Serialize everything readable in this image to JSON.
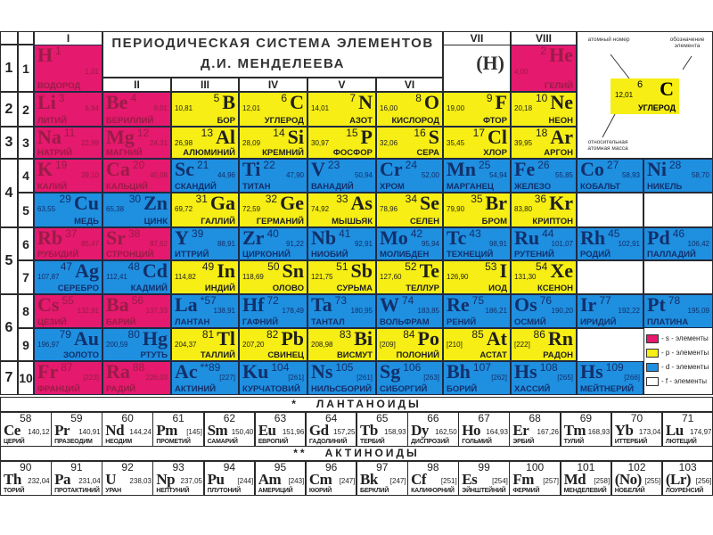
{
  "title": {
    "line1": "ПЕРИОДИЧЕСКАЯ СИСТЕМА ЭЛЕМЕНТОВ",
    "line2": "Д.И. МЕНДЕЛЕЕВА"
  },
  "groups": [
    "I",
    "II",
    "III",
    "IV",
    "V",
    "VI",
    "VII",
    "VIII"
  ],
  "periods": [
    "1",
    "2",
    "3",
    "4",
    "5",
    "6",
    "7"
  ],
  "row_numbers": [
    "1",
    "2",
    "3",
    "4",
    "5",
    "6",
    "7",
    "8",
    "9",
    "10"
  ],
  "hydrogen_in_vii": "(H)",
  "colors": {
    "s": "#e5196d",
    "p": "#f6ee14",
    "d": "#1f8fe0",
    "f": "#ffffff"
  },
  "rows": [
    [
      {
        "s": "H",
        "n": "1",
        "m": "1,01",
        "name": "ВОДОРОД",
        "t": "s",
        "lay": "L"
      },
      null,
      null,
      null,
      null,
      null,
      null,
      {
        "s": "He",
        "n": "2",
        "m": "4,00",
        "name": "ГЕЛИЙ",
        "t": "s",
        "lay": "R"
      },
      null,
      null
    ],
    [
      {
        "s": "Li",
        "n": "3",
        "m": "6,94",
        "name": "ЛИТИЙ",
        "t": "s",
        "lay": "L"
      },
      {
        "s": "Be",
        "n": "4",
        "m": "9,01",
        "name": "БЕРИЛЛИЙ",
        "t": "s",
        "lay": "L"
      },
      {
        "s": "B",
        "n": "5",
        "m": "10,81",
        "name": "БОР",
        "t": "p",
        "lay": "R"
      },
      {
        "s": "C",
        "n": "6",
        "m": "12,01",
        "name": "УГЛЕРОД",
        "t": "p",
        "lay": "R"
      },
      {
        "s": "N",
        "n": "7",
        "m": "14,01",
        "name": "АЗОТ",
        "t": "p",
        "lay": "R"
      },
      {
        "s": "O",
        "n": "8",
        "m": "16,00",
        "name": "КИСЛОРОД",
        "t": "p",
        "lay": "R"
      },
      {
        "s": "F",
        "n": "9",
        "m": "19,00",
        "name": "ФТОР",
        "t": "p",
        "lay": "R"
      },
      {
        "s": "Ne",
        "n": "10",
        "m": "20,18",
        "name": "НЕОН",
        "t": "p",
        "lay": "R"
      },
      null,
      null
    ],
    [
      {
        "s": "Na",
        "n": "11",
        "m": "22,99",
        "name": "НАТРИЙ",
        "t": "s",
        "lay": "L"
      },
      {
        "s": "Mg",
        "n": "12",
        "m": "24,31",
        "name": "МАГНИЙ",
        "t": "s",
        "lay": "L"
      },
      {
        "s": "Al",
        "n": "13",
        "m": "26,98",
        "name": "АЛЮМИНИЙ",
        "t": "p",
        "lay": "R"
      },
      {
        "s": "Si",
        "n": "14",
        "m": "28,09",
        "name": "КРЕМНИЙ",
        "t": "p",
        "lay": "R"
      },
      {
        "s": "P",
        "n": "15",
        "m": "30,97",
        "name": "ФОСФОР",
        "t": "p",
        "lay": "R"
      },
      {
        "s": "S",
        "n": "16",
        "m": "32,06",
        "name": "СЕРА",
        "t": "p",
        "lay": "R"
      },
      {
        "s": "Cl",
        "n": "17",
        "m": "35,45",
        "name": "ХЛОР",
        "t": "p",
        "lay": "R"
      },
      {
        "s": "Ar",
        "n": "18",
        "m": "39,95",
        "name": "АРГОН",
        "t": "p",
        "lay": "R"
      },
      null,
      null
    ],
    [
      {
        "s": "K",
        "n": "19",
        "m": "39,10",
        "name": "КАЛИЙ",
        "t": "s",
        "lay": "L"
      },
      {
        "s": "Ca",
        "n": "20",
        "m": "40,08",
        "name": "КАЛЬЦИЙ",
        "t": "s",
        "lay": "L"
      },
      {
        "s": "Sc",
        "n": "21",
        "m": "44,96",
        "name": "СКАНДИЙ",
        "t": "d",
        "lay": "L"
      },
      {
        "s": "Ti",
        "n": "22",
        "m": "47,90",
        "name": "ТИТАН",
        "t": "d",
        "lay": "L"
      },
      {
        "s": "V",
        "n": "23",
        "m": "50,94",
        "name": "ВАНАДИЙ",
        "t": "d",
        "lay": "L"
      },
      {
        "s": "Cr",
        "n": "24",
        "m": "52,00",
        "name": "ХРОМ",
        "t": "d",
        "lay": "L"
      },
      {
        "s": "Mn",
        "n": "25",
        "m": "54,94",
        "name": "МАРГАНЕЦ",
        "t": "d",
        "lay": "L"
      },
      {
        "s": "Fe",
        "n": "26",
        "m": "55,85",
        "name": "ЖЕЛЕЗО",
        "t": "d",
        "lay": "L"
      },
      {
        "s": "Co",
        "n": "27",
        "m": "58,93",
        "name": "КОБАЛЬТ",
        "t": "d",
        "lay": "L"
      },
      {
        "s": "Ni",
        "n": "28",
        "m": "58,70",
        "name": "НИКЕЛЬ",
        "t": "d",
        "lay": "L"
      }
    ],
    [
      {
        "s": "Cu",
        "n": "29",
        "m": "63,55",
        "name": "МЕДЬ",
        "t": "d",
        "lay": "R"
      },
      {
        "s": "Zn",
        "n": "30",
        "m": "65,38",
        "name": "ЦИНК",
        "t": "d",
        "lay": "R"
      },
      {
        "s": "Ga",
        "n": "31",
        "m": "69,72",
        "name": "ГАЛЛИЙ",
        "t": "p",
        "lay": "R"
      },
      {
        "s": "Ge",
        "n": "32",
        "m": "72,59",
        "name": "ГЕРМАНИЙ",
        "t": "p",
        "lay": "R"
      },
      {
        "s": "As",
        "n": "33",
        "m": "74,92",
        "name": "МЫШЬЯК",
        "t": "p",
        "lay": "R"
      },
      {
        "s": "Se",
        "n": "34",
        "m": "78,96",
        "name": "СЕЛЕН",
        "t": "p",
        "lay": "R"
      },
      {
        "s": "Br",
        "n": "35",
        "m": "79,90",
        "name": "БРОМ",
        "t": "p",
        "lay": "R"
      },
      {
        "s": "Kr",
        "n": "36",
        "m": "83,80",
        "name": "КРИПТОН",
        "t": "p",
        "lay": "R"
      },
      null,
      null
    ],
    [
      {
        "s": "Rb",
        "n": "37",
        "m": "85,47",
        "name": "РУБИДИЙ",
        "t": "s",
        "lay": "L"
      },
      {
        "s": "Sr",
        "n": "38",
        "m": "87,62",
        "name": "СТРОНЦИЙ",
        "t": "s",
        "lay": "L"
      },
      {
        "s": "Y",
        "n": "39",
        "m": "88,91",
        "name": "ИТТРИЙ",
        "t": "d",
        "lay": "L"
      },
      {
        "s": "Zr",
        "n": "40",
        "m": "91,22",
        "name": "ЦИРКОНИЙ",
        "t": "d",
        "lay": "L"
      },
      {
        "s": "Nb",
        "n": "41",
        "m": "92,91",
        "name": "НИОБИЙ",
        "t": "d",
        "lay": "L"
      },
      {
        "s": "Mo",
        "n": "42",
        "m": "95,94",
        "name": "МОЛИБДЕН",
        "t": "d",
        "lay": "L"
      },
      {
        "s": "Tc",
        "n": "43",
        "m": "98,91",
        "name": "ТЕХНЕЦИЙ",
        "t": "d",
        "lay": "L"
      },
      {
        "s": "Ru",
        "n": "44",
        "m": "101,07",
        "name": "РУТЕНИЙ",
        "t": "d",
        "lay": "L"
      },
      {
        "s": "Rh",
        "n": "45",
        "m": "102,91",
        "name": "РОДИЙ",
        "t": "d",
        "lay": "L"
      },
      {
        "s": "Pd",
        "n": "46",
        "m": "106,42",
        "name": "ПАЛЛАДИЙ",
        "t": "d",
        "lay": "L"
      }
    ],
    [
      {
        "s": "Ag",
        "n": "47",
        "m": "107,87",
        "name": "СЕРЕБРО",
        "t": "d",
        "lay": "R"
      },
      {
        "s": "Cd",
        "n": "48",
        "m": "112,41",
        "name": "КАДМИЙ",
        "t": "d",
        "lay": "R"
      },
      {
        "s": "In",
        "n": "49",
        "m": "114,82",
        "name": "ИНДИЙ",
        "t": "p",
        "lay": "R"
      },
      {
        "s": "Sn",
        "n": "50",
        "m": "118,69",
        "name": "ОЛОВО",
        "t": "p",
        "lay": "R"
      },
      {
        "s": "Sb",
        "n": "51",
        "m": "121,75",
        "name": "СУРЬМА",
        "t": "p",
        "lay": "R"
      },
      {
        "s": "Te",
        "n": "52",
        "m": "127,60",
        "name": "ТЕЛЛУР",
        "t": "p",
        "lay": "R"
      },
      {
        "s": "I",
        "n": "53",
        "m": "126,90",
        "name": "ИОД",
        "t": "p",
        "lay": "R"
      },
      {
        "s": "Xe",
        "n": "54",
        "m": "131,30",
        "name": "КСЕНОН",
        "t": "p",
        "lay": "R"
      },
      null,
      null
    ],
    [
      {
        "s": "Cs",
        "n": "55",
        "m": "132,91",
        "name": "ЦЕЗИЙ",
        "t": "s",
        "lay": "L"
      },
      {
        "s": "Ba",
        "n": "56",
        "m": "137,33",
        "name": "БАРИЙ",
        "t": "s",
        "lay": "L"
      },
      {
        "s": "La",
        "n": "*57",
        "m": "138,91",
        "name": "ЛАНТАН",
        "t": "d",
        "lay": "L"
      },
      {
        "s": "Hf",
        "n": "72",
        "m": "178,49",
        "name": "ГАФНИЙ",
        "t": "d",
        "lay": "L"
      },
      {
        "s": "Ta",
        "n": "73",
        "m": "180,95",
        "name": "ТАНТАЛ",
        "t": "d",
        "lay": "L"
      },
      {
        "s": "W",
        "n": "74",
        "m": "183,85",
        "name": "ВОЛЬФРАМ",
        "t": "d",
        "lay": "L"
      },
      {
        "s": "Re",
        "n": "75",
        "m": "186,21",
        "name": "РЕНИЙ",
        "t": "d",
        "lay": "L"
      },
      {
        "s": "Os",
        "n": "76",
        "m": "190,20",
        "name": "ОСМИЙ",
        "t": "d",
        "lay": "L"
      },
      {
        "s": "Ir",
        "n": "77",
        "m": "192,22",
        "name": "ИРИДИЙ",
        "t": "d",
        "lay": "L"
      },
      {
        "s": "Pt",
        "n": "78",
        "m": "195,09",
        "name": "ПЛАТИНА",
        "t": "d",
        "lay": "L"
      }
    ],
    [
      {
        "s": "Au",
        "n": "79",
        "m": "196,97",
        "name": "ЗОЛОТО",
        "t": "d",
        "lay": "R"
      },
      {
        "s": "Hg",
        "n": "80",
        "m": "200,59",
        "name": "РТУТЬ",
        "t": "d",
        "lay": "R"
      },
      {
        "s": "Tl",
        "n": "81",
        "m": "204,37",
        "name": "ТАЛЛИЙ",
        "t": "p",
        "lay": "R"
      },
      {
        "s": "Pb",
        "n": "82",
        "m": "207,20",
        "name": "СВИНЕЦ",
        "t": "p",
        "lay": "R"
      },
      {
        "s": "Bi",
        "n": "83",
        "m": "208,98",
        "name": "ВИСМУТ",
        "t": "p",
        "lay": "R"
      },
      {
        "s": "Po",
        "n": "84",
        "m": "[209]",
        "name": "ПОЛОНИЙ",
        "t": "p",
        "lay": "R"
      },
      {
        "s": "At",
        "n": "85",
        "m": "[210]",
        "name": "АСТАТ",
        "t": "p",
        "lay": "R"
      },
      {
        "s": "Rn",
        "n": "86",
        "m": "[222]",
        "name": "РАДОН",
        "t": "p",
        "lay": "R"
      },
      null,
      null
    ],
    [
      {
        "s": "Fr",
        "n": "87",
        "m": "[223]",
        "name": "ФРАНЦИЙ",
        "t": "s",
        "lay": "L"
      },
      {
        "s": "Ra",
        "n": "88",
        "m": "226,03",
        "name": "РАДИЙ",
        "t": "s",
        "lay": "L"
      },
      {
        "s": "Ac",
        "n": "**89",
        "m": "[227]",
        "name": "АКТИНИЙ",
        "t": "d",
        "lay": "L"
      },
      {
        "s": "Ku",
        "n": "104",
        "m": "[261]",
        "name": "КУРЧАТОВИЙ",
        "t": "d",
        "lay": "L"
      },
      {
        "s": "Ns",
        "n": "105",
        "m": "[261]",
        "name": "НИЛЬСБОРИЙ",
        "t": "d",
        "lay": "L"
      },
      {
        "s": "Sg",
        "n": "106",
        "m": "[263]",
        "name": "СИБОРГИЙ",
        "t": "d",
        "lay": "L"
      },
      {
        "s": "Bh",
        "n": "107",
        "m": "[262]",
        "name": "БОРИЙ",
        "t": "d",
        "lay": "L"
      },
      {
        "s": "Hs",
        "n": "108",
        "m": "[265]",
        "name": "ХАССИЙ",
        "t": "d",
        "lay": "L"
      },
      {
        "s": "Hs",
        "n": "109",
        "m": "[266]",
        "name": "МЕЙТНЕРИЙ",
        "t": "d",
        "lay": "L"
      },
      null
    ]
  ],
  "key": {
    "mass": "12,01",
    "number": "6",
    "symbol": "C",
    "name": "УГЛЕРОД",
    "label_number": "атомный номер",
    "label_symbol": "обозначение элемента",
    "label_mass": "относительная атомная масса"
  },
  "legend": [
    {
      "type": "s",
      "label": "- s - элементы"
    },
    {
      "type": "p",
      "label": "- p - элементы"
    },
    {
      "type": "d",
      "label": "- d - элементы"
    },
    {
      "type": "f",
      "label": "- f - элементы"
    }
  ],
  "lanthanides": {
    "mark": "*",
    "title": "ЛАНТАНОИДЫ",
    "items": [
      {
        "s": "Ce",
        "n": "58",
        "m": "140,12",
        "name": "ЦЕРИЙ"
      },
      {
        "s": "Pr",
        "n": "59",
        "m": "140,91",
        "name": "ПРАЗЕОДИМ"
      },
      {
        "s": "Nd",
        "n": "60",
        "m": "144,24",
        "name": "НЕОДИМ"
      },
      {
        "s": "Pm",
        "n": "61",
        "m": "[145]",
        "name": "ПРОМЕТИЙ"
      },
      {
        "s": "Sm",
        "n": "62",
        "m": "150,40",
        "name": "САМАРИЙ"
      },
      {
        "s": "Eu",
        "n": "63",
        "m": "151,96",
        "name": "ЕВРОПИЙ"
      },
      {
        "s": "Gd",
        "n": "64",
        "m": "157,25",
        "name": "ГАДОЛИНИЙ"
      },
      {
        "s": "Tb",
        "n": "65",
        "m": "158,93",
        "name": "ТЕРБИЙ"
      },
      {
        "s": "Dy",
        "n": "66",
        "m": "162,50",
        "name": "ДИСПРОЗИЙ"
      },
      {
        "s": "Ho",
        "n": "67",
        "m": "164,93",
        "name": "ГОЛЬМИЙ"
      },
      {
        "s": "Er",
        "n": "68",
        "m": "167,26",
        "name": "ЭРБИЙ"
      },
      {
        "s": "Tm",
        "n": "69",
        "m": "168,93",
        "name": "ТУЛИЙ"
      },
      {
        "s": "Yb",
        "n": "70",
        "m": "173,04",
        "name": "ИТТЕРБИЙ"
      },
      {
        "s": "Lu",
        "n": "71",
        "m": "174,97",
        "name": "ЛЮТЕЦИЙ"
      }
    ]
  },
  "actinides": {
    "mark": "**",
    "title": "АКТИНОИДЫ",
    "items": [
      {
        "s": "Th",
        "n": "90",
        "m": "232,04",
        "name": "ТОРИЙ"
      },
      {
        "s": "Pa",
        "n": "91",
        "m": "231,04",
        "name": "ПРОТАКТИНИЙ"
      },
      {
        "s": "U",
        "n": "92",
        "m": "238,03",
        "name": "УРАН"
      },
      {
        "s": "Np",
        "n": "93",
        "m": "237,05",
        "name": "НЕПТУНИЙ"
      },
      {
        "s": "Pu",
        "n": "94",
        "m": "[244]",
        "name": "ПЛУТОНИЙ"
      },
      {
        "s": "Am",
        "n": "95",
        "m": "[243]",
        "name": "АМЕРИЦИЙ"
      },
      {
        "s": "Cm",
        "n": "96",
        "m": "[247]",
        "name": "КЮРИЙ"
      },
      {
        "s": "Bk",
        "n": "97",
        "m": "[247]",
        "name": "БЕРКЛИЙ"
      },
      {
        "s": "Cf",
        "n": "98",
        "m": "[251]",
        "name": "КАЛИФОРНИЙ"
      },
      {
        "s": "Es",
        "n": "99",
        "m": "[254]",
        "name": "ЭЙНШТЕЙНИЙ"
      },
      {
        "s": "Fm",
        "n": "100",
        "m": "[257]",
        "name": "ФЕРМИЙ"
      },
      {
        "s": "Md",
        "n": "101",
        "m": "[258]",
        "name": "МЕНДЕЛЕВИЙ"
      },
      {
        "s": "(No)",
        "n": "102",
        "m": "[255]",
        "name": "НОБЕЛИЙ"
      },
      {
        "s": "(Lr)",
        "n": "103",
        "m": "[256]",
        "name": "ЛОУРЕНСИЙ"
      }
    ]
  }
}
